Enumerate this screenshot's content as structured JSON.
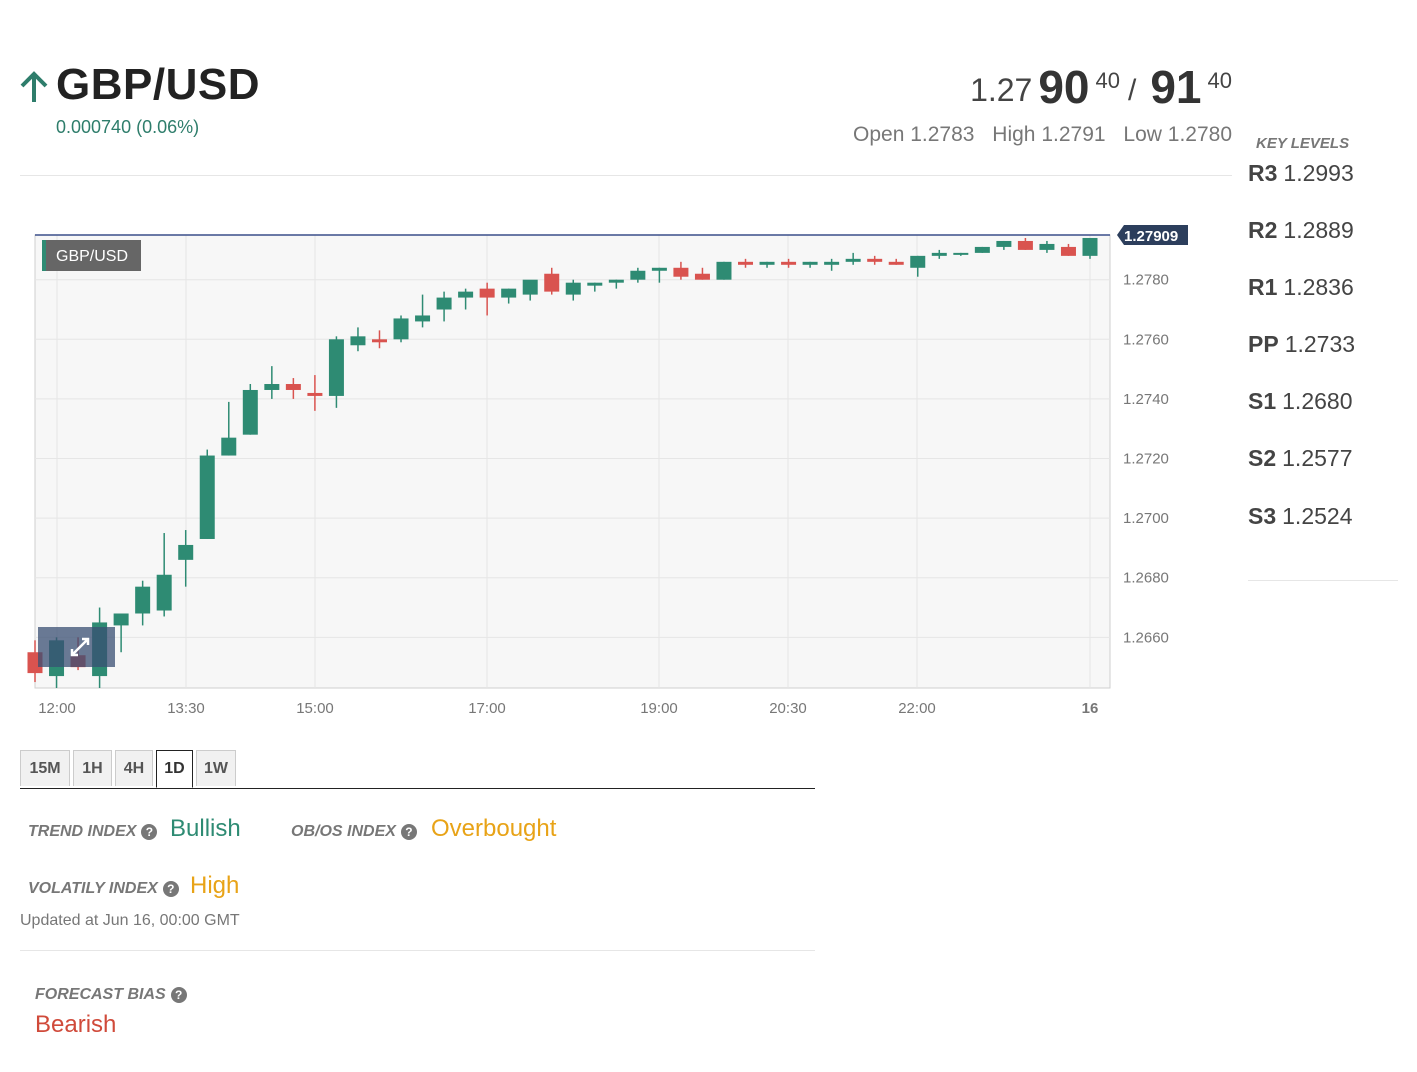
{
  "instrument": {
    "title": "GBP/USD",
    "change": "0.000740 (0.06%)",
    "direction_icon": "arrow-up-icon"
  },
  "quote": {
    "bid_prefix": "1.27",
    "bid_big": "90",
    "bid_sup": "40",
    "separator": "/",
    "ask_big": "91",
    "ask_sup": "40",
    "open": "Open 1.2783",
    "high": "High 1.2791",
    "low": "Low 1.2780"
  },
  "key_levels": {
    "title": "KEY LEVELS",
    "items": [
      {
        "name": "R3",
        "value": "1.2993"
      },
      {
        "name": "R2",
        "value": "1.2889"
      },
      {
        "name": "R1",
        "value": "1.2836"
      },
      {
        "name": "PP",
        "value": "1.2733"
      },
      {
        "name": "S1",
        "value": "1.2680"
      },
      {
        "name": "S2",
        "value": "1.2577"
      },
      {
        "name": "S3",
        "value": "1.2524"
      }
    ]
  },
  "chart_data": {
    "type": "candlestick",
    "label": "GBP/USD",
    "last_price": "1.27909",
    "ylim": [
      1.2643,
      1.2795
    ],
    "y_ticks": [
      "1.2780",
      "1.2760",
      "1.2740",
      "1.2720",
      "1.2700",
      "1.2680",
      "1.2660"
    ],
    "x_ticks": [
      "12:00",
      "13:30",
      "15:00",
      "17:00",
      "19:00",
      "20:30",
      "22:00",
      "16"
    ],
    "grid": true,
    "colors": {
      "up": "#2e8b73",
      "down": "#d9534f",
      "grid": "#e6e6e6",
      "price_tag": "#2c3e5c"
    },
    "candles": [
      {
        "o": 1.2655,
        "h": 1.2659,
        "l": 1.2645,
        "c": 1.2648
      },
      {
        "o": 1.2647,
        "h": 1.266,
        "l": 1.2643,
        "c": 1.2659
      },
      {
        "o": 1.2654,
        "h": 1.266,
        "l": 1.2649,
        "c": 1.265
      },
      {
        "o": 1.2647,
        "h": 1.267,
        "l": 1.2643,
        "c": 1.2665
      },
      {
        "o": 1.2664,
        "h": 1.2668,
        "l": 1.2655,
        "c": 1.2668
      },
      {
        "o": 1.2668,
        "h": 1.2679,
        "l": 1.2664,
        "c": 1.2677
      },
      {
        "o": 1.2669,
        "h": 1.2695,
        "l": 1.2667,
        "c": 1.2681
      },
      {
        "o": 1.2686,
        "h": 1.2696,
        "l": 1.2677,
        "c": 1.2691
      },
      {
        "o": 1.2693,
        "h": 1.2723,
        "l": 1.2693,
        "c": 1.2721
      },
      {
        "o": 1.2721,
        "h": 1.2739,
        "l": 1.2721,
        "c": 1.2727
      },
      {
        "o": 1.2728,
        "h": 1.2745,
        "l": 1.2728,
        "c": 1.2743
      },
      {
        "o": 1.2743,
        "h": 1.2751,
        "l": 1.274,
        "c": 1.2745
      },
      {
        "o": 1.2745,
        "h": 1.2747,
        "l": 1.274,
        "c": 1.2743
      },
      {
        "o": 1.2742,
        "h": 1.2748,
        "l": 1.2736,
        "c": 1.2741
      },
      {
        "o": 1.2741,
        "h": 1.2761,
        "l": 1.2737,
        "c": 1.276
      },
      {
        "o": 1.2758,
        "h": 1.2764,
        "l": 1.2756,
        "c": 1.2761
      },
      {
        "o": 1.276,
        "h": 1.2763,
        "l": 1.2757,
        "c": 1.2759
      },
      {
        "o": 1.276,
        "h": 1.2768,
        "l": 1.2759,
        "c": 1.2767
      },
      {
        "o": 1.2766,
        "h": 1.2775,
        "l": 1.2764,
        "c": 1.2768
      },
      {
        "o": 1.277,
        "h": 1.2776,
        "l": 1.2766,
        "c": 1.2774
      },
      {
        "o": 1.2774,
        "h": 1.2777,
        "l": 1.277,
        "c": 1.2776
      },
      {
        "o": 1.2777,
        "h": 1.2779,
        "l": 1.2768,
        "c": 1.2774
      },
      {
        "o": 1.2774,
        "h": 1.2777,
        "l": 1.2772,
        "c": 1.2777
      },
      {
        "o": 1.2775,
        "h": 1.2779,
        "l": 1.2773,
        "c": 1.278
      },
      {
        "o": 1.2782,
        "h": 1.2784,
        "l": 1.2775,
        "c": 1.2776
      },
      {
        "o": 1.2775,
        "h": 1.278,
        "l": 1.2773,
        "c": 1.2779
      },
      {
        "o": 1.2778,
        "h": 1.2779,
        "l": 1.2776,
        "c": 1.2779
      },
      {
        "o": 1.2779,
        "h": 1.278,
        "l": 1.2777,
        "c": 1.278
      },
      {
        "o": 1.278,
        "h": 1.2784,
        "l": 1.2779,
        "c": 1.2783
      },
      {
        "o": 1.2783,
        "h": 1.2784,
        "l": 1.2779,
        "c": 1.2784
      },
      {
        "o": 1.2784,
        "h": 1.2786,
        "l": 1.278,
        "c": 1.2781
      },
      {
        "o": 1.2782,
        "h": 1.2784,
        "l": 1.278,
        "c": 1.278
      },
      {
        "o": 1.278,
        "h": 1.2786,
        "l": 1.278,
        "c": 1.2786
      },
      {
        "o": 1.2786,
        "h": 1.2787,
        "l": 1.2784,
        "c": 1.2785
      },
      {
        "o": 1.2785,
        "h": 1.2786,
        "l": 1.2784,
        "c": 1.2786
      },
      {
        "o": 1.2786,
        "h": 1.2787,
        "l": 1.2784,
        "c": 1.2785
      },
      {
        "o": 1.2785,
        "h": 1.2786,
        "l": 1.2784,
        "c": 1.2786
      },
      {
        "o": 1.2785,
        "h": 1.2787,
        "l": 1.2783,
        "c": 1.2786
      },
      {
        "o": 1.2786,
        "h": 1.2789,
        "l": 1.2785,
        "c": 1.2787
      },
      {
        "o": 1.2787,
        "h": 1.2788,
        "l": 1.2785,
        "c": 1.2786
      },
      {
        "o": 1.2786,
        "h": 1.2787,
        "l": 1.2785,
        "c": 1.2785
      },
      {
        "o": 1.2784,
        "h": 1.2788,
        "l": 1.2781,
        "c": 1.2788
      },
      {
        "o": 1.2788,
        "h": 1.279,
        "l": 1.2787,
        "c": 1.2789
      },
      {
        "o": 1.2789,
        "h": 1.2789,
        "l": 1.2788,
        "c": 1.2789
      },
      {
        "o": 1.2789,
        "h": 1.2791,
        "l": 1.2789,
        "c": 1.2791
      },
      {
        "o": 1.2791,
        "h": 1.2793,
        "l": 1.279,
        "c": 1.2793
      },
      {
        "o": 1.2793,
        "h": 1.2794,
        "l": 1.279,
        "c": 1.279
      },
      {
        "o": 1.279,
        "h": 1.2793,
        "l": 1.2789,
        "c": 1.2792
      },
      {
        "o": 1.2791,
        "h": 1.2792,
        "l": 1.2788,
        "c": 1.2788
      },
      {
        "o": 1.2788,
        "h": 1.2794,
        "l": 1.2787,
        "c": 1.2794
      }
    ]
  },
  "timeframes": {
    "items": [
      "15M",
      "1H",
      "4H",
      "1D",
      "1W"
    ],
    "selected": "1D"
  },
  "indicators": {
    "trend_label": "TREND INDEX",
    "trend_value": "Bullish",
    "obos_label": "OB/OS INDEX",
    "obos_value": "Overbought",
    "volatility_label": "VOLATILY INDEX",
    "volatility_value": "High",
    "updated": "Updated at Jun 16, 00:00 GMT",
    "forecast_label": "FORECAST BIAS",
    "forecast_value": "Bearish",
    "colors": {
      "bullish": "#2e8b73",
      "warning": "#e8a317",
      "bearish": "#d04a3a"
    }
  }
}
